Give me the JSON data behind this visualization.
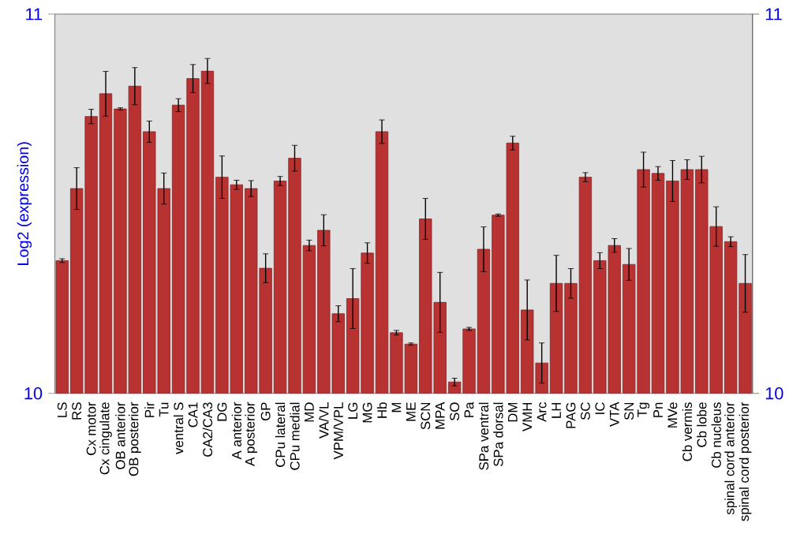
{
  "chart_data": {
    "type": "bar",
    "categories": [
      "LS",
      "RS",
      "Cx motor",
      "Cx cingulate",
      "OB anterior",
      "OB posterior",
      "Pir",
      "Tu",
      "ventral S",
      "CA1",
      "CA2/CA3",
      "DG",
      "A anterior",
      "A posterior",
      "GP",
      "CPu lateral",
      "CPu medial",
      "MD",
      "VA/VL",
      "VPM/VPL",
      "LG",
      "MG",
      "Hb",
      "M",
      "ME",
      "SCN",
      "MPA",
      "SO",
      "Pa",
      "SPa ventral",
      "SPa dorsal",
      "DM",
      "VMH",
      "Arc",
      "LH",
      "PAG",
      "SC",
      "IC",
      "VTA",
      "SN",
      "Tg",
      "Pn",
      "MVe",
      "Cb vermis",
      "Cb lobe",
      "Cb nucleus",
      "spinal cord anterior",
      "spinal cord posterior"
    ],
    "values": [
      10.35,
      10.54,
      10.73,
      10.79,
      10.75,
      10.81,
      10.69,
      10.54,
      10.76,
      10.83,
      10.85,
      10.57,
      10.55,
      10.54,
      10.33,
      10.56,
      10.62,
      10.39,
      10.43,
      10.21,
      10.25,
      10.37,
      10.69,
      10.16,
      10.13,
      10.46,
      10.24,
      10.03,
      10.17,
      10.38,
      10.47,
      10.66,
      10.22,
      10.08,
      10.29,
      10.29,
      10.57,
      10.35,
      10.39,
      10.34,
      10.59,
      10.58,
      10.56,
      10.59,
      10.59,
      10.44,
      10.4,
      10.29
    ],
    "errors": [
      0.005,
      0.055,
      0.019,
      0.059,
      0.003,
      0.049,
      0.028,
      0.041,
      0.017,
      0.037,
      0.033,
      0.056,
      0.012,
      0.021,
      0.038,
      0.012,
      0.034,
      0.014,
      0.041,
      0.021,
      0.079,
      0.027,
      0.031,
      0.006,
      0.003,
      0.054,
      0.079,
      0.01,
      0.004,
      0.059,
      0.003,
      0.018,
      0.079,
      0.053,
      0.074,
      0.039,
      0.012,
      0.021,
      0.018,
      0.042,
      0.046,
      0.018,
      0.054,
      0.026,
      0.035,
      0.052,
      0.013,
      0.076
    ],
    "color": "#b83232",
    "ylabel": "Log2 (expression)",
    "ylim": [
      10,
      11
    ],
    "yticks": [
      10,
      11
    ],
    "y2lim": [
      10,
      11
    ],
    "y2ticks": [
      10,
      11
    ]
  }
}
